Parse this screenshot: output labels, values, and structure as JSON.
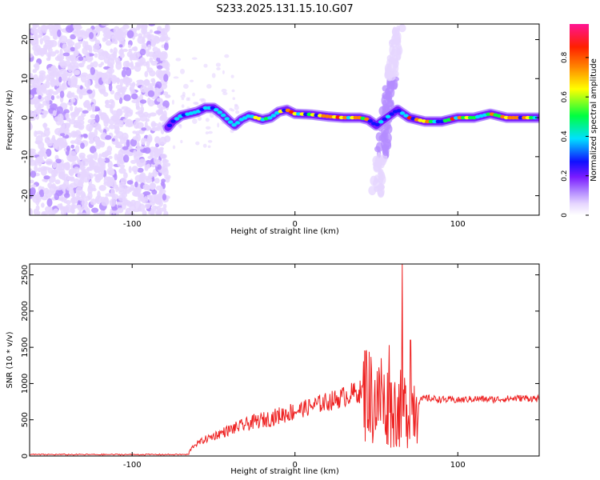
{
  "figure_title": "S233.2025.131.15.10.G07",
  "chart_data": [
    {
      "type": "heatmap",
      "title": "S233.2025.131.15.10.G07",
      "xlabel": "Height of straight line (km)",
      "ylabel": "Frequency (Hz)",
      "xlim": [
        -163,
        150
      ],
      "ylim": [
        -25,
        24
      ],
      "xticks": [
        -100,
        0,
        100
      ],
      "yticks": [
        -20,
        -10,
        0,
        10,
        20
      ],
      "colorbar": {
        "label": "Normalized spectral amplitude",
        "range": [
          0,
          0.97
        ],
        "ticks": [
          0,
          0.2,
          0.4,
          0.6,
          0.8
        ],
        "colormap": "rainbow-like: white, lavender, violet, purple, blue, cyan, green, yellow, orange, red, magenta",
        "colors": [
          "#ffffff",
          "#e6d6ff",
          "#b48cff",
          "#7a1bff",
          "#1010ff",
          "#00e0ff",
          "#00ff40",
          "#ffff00",
          "#ff8000",
          "#ff2000",
          "#ff1493"
        ]
      },
      "noise_region": {
        "x": [
          -163,
          -78
        ],
        "y": [
          -25,
          24
        ],
        "description": "scattered violet speckles"
      },
      "ridge": [
        {
          "x": -78,
          "y": -2.5
        },
        {
          "x": -75,
          "y": -1.0
        },
        {
          "x": -70,
          "y": 0.5
        },
        {
          "x": -65,
          "y": 1.0
        },
        {
          "x": -60,
          "y": 1.5
        },
        {
          "x": -55,
          "y": 2.5
        },
        {
          "x": -50,
          "y": 2.5
        },
        {
          "x": -45,
          "y": 1.0
        },
        {
          "x": -40,
          "y": -1.0
        },
        {
          "x": -37,
          "y": -2.0
        },
        {
          "x": -33,
          "y": -0.5
        },
        {
          "x": -28,
          "y": 0.5
        },
        {
          "x": -20,
          "y": -0.5
        },
        {
          "x": -15,
          "y": 0.0
        },
        {
          "x": -10,
          "y": 1.5
        },
        {
          "x": -5,
          "y": 2.0
        },
        {
          "x": 0,
          "y": 1.0
        },
        {
          "x": 10,
          "y": 0.8
        },
        {
          "x": 20,
          "y": 0.3
        },
        {
          "x": 30,
          "y": 0.0
        },
        {
          "x": 40,
          "y": 0.0
        },
        {
          "x": 45,
          "y": -0.5
        },
        {
          "x": 50,
          "y": -2.0
        },
        {
          "x": 53,
          "y": -1.0
        },
        {
          "x": 58,
          "y": 0.5
        },
        {
          "x": 63,
          "y": 2.0
        },
        {
          "x": 70,
          "y": 0.0
        },
        {
          "x": 80,
          "y": -1.0
        },
        {
          "x": 90,
          "y": -1.0
        },
        {
          "x": 100,
          "y": 0.0
        },
        {
          "x": 110,
          "y": 0.0
        },
        {
          "x": 120,
          "y": 1.0
        },
        {
          "x": 130,
          "y": 0.0
        },
        {
          "x": 150,
          "y": 0.0
        }
      ],
      "vertical_feature": {
        "x": [
          50,
          63
        ],
        "y": [
          -20,
          23
        ]
      }
    },
    {
      "type": "line",
      "xlabel": "Height of straight line (km)",
      "ylabel": "SNR (10 * v/v)",
      "xlim": [
        -163,
        150
      ],
      "ylim": [
        0,
        2650
      ],
      "xticks": [
        -100,
        0,
        100
      ],
      "yticks": [
        0,
        500,
        1000,
        1500,
        2000,
        2500
      ],
      "series": [
        {
          "color": "#ee2222",
          "baseline": {
            "x": [
              -163,
              -65
            ],
            "y": 20
          },
          "trend": [
            {
              "x": -65,
              "y": 60
            },
            {
              "x": -62,
              "y": 150
            },
            {
              "x": -55,
              "y": 230
            },
            {
              "x": -45,
              "y": 320
            },
            {
              "x": -35,
              "y": 400
            },
            {
              "x": -25,
              "y": 470
            },
            {
              "x": -15,
              "y": 520
            },
            {
              "x": -5,
              "y": 590
            },
            {
              "x": 5,
              "y": 650
            },
            {
              "x": 15,
              "y": 720
            },
            {
              "x": 25,
              "y": 780
            },
            {
              "x": 35,
              "y": 860
            },
            {
              "x": 42,
              "y": 900
            },
            {
              "x": 50,
              "y": 750
            },
            {
              "x": 60,
              "y": 650
            },
            {
              "x": 70,
              "y": 650
            },
            {
              "x": 75,
              "y": 750
            },
            {
              "x": 80,
              "y": 800
            },
            {
              "x": 90,
              "y": 780
            },
            {
              "x": 100,
              "y": 770
            },
            {
              "x": 110,
              "y": 790
            },
            {
              "x": 120,
              "y": 780
            },
            {
              "x": 130,
              "y": 790
            },
            {
              "x": 140,
              "y": 800
            },
            {
              "x": 150,
              "y": 790
            }
          ],
          "peaks": [
            {
              "x": 44,
              "y": 1460
            },
            {
              "x": 53,
              "y": 1350
            },
            {
              "x": 58,
              "y": 1530
            },
            {
              "x": 66,
              "y": 2650
            },
            {
              "x": 71,
              "y": 1600
            }
          ]
        }
      ]
    }
  ]
}
